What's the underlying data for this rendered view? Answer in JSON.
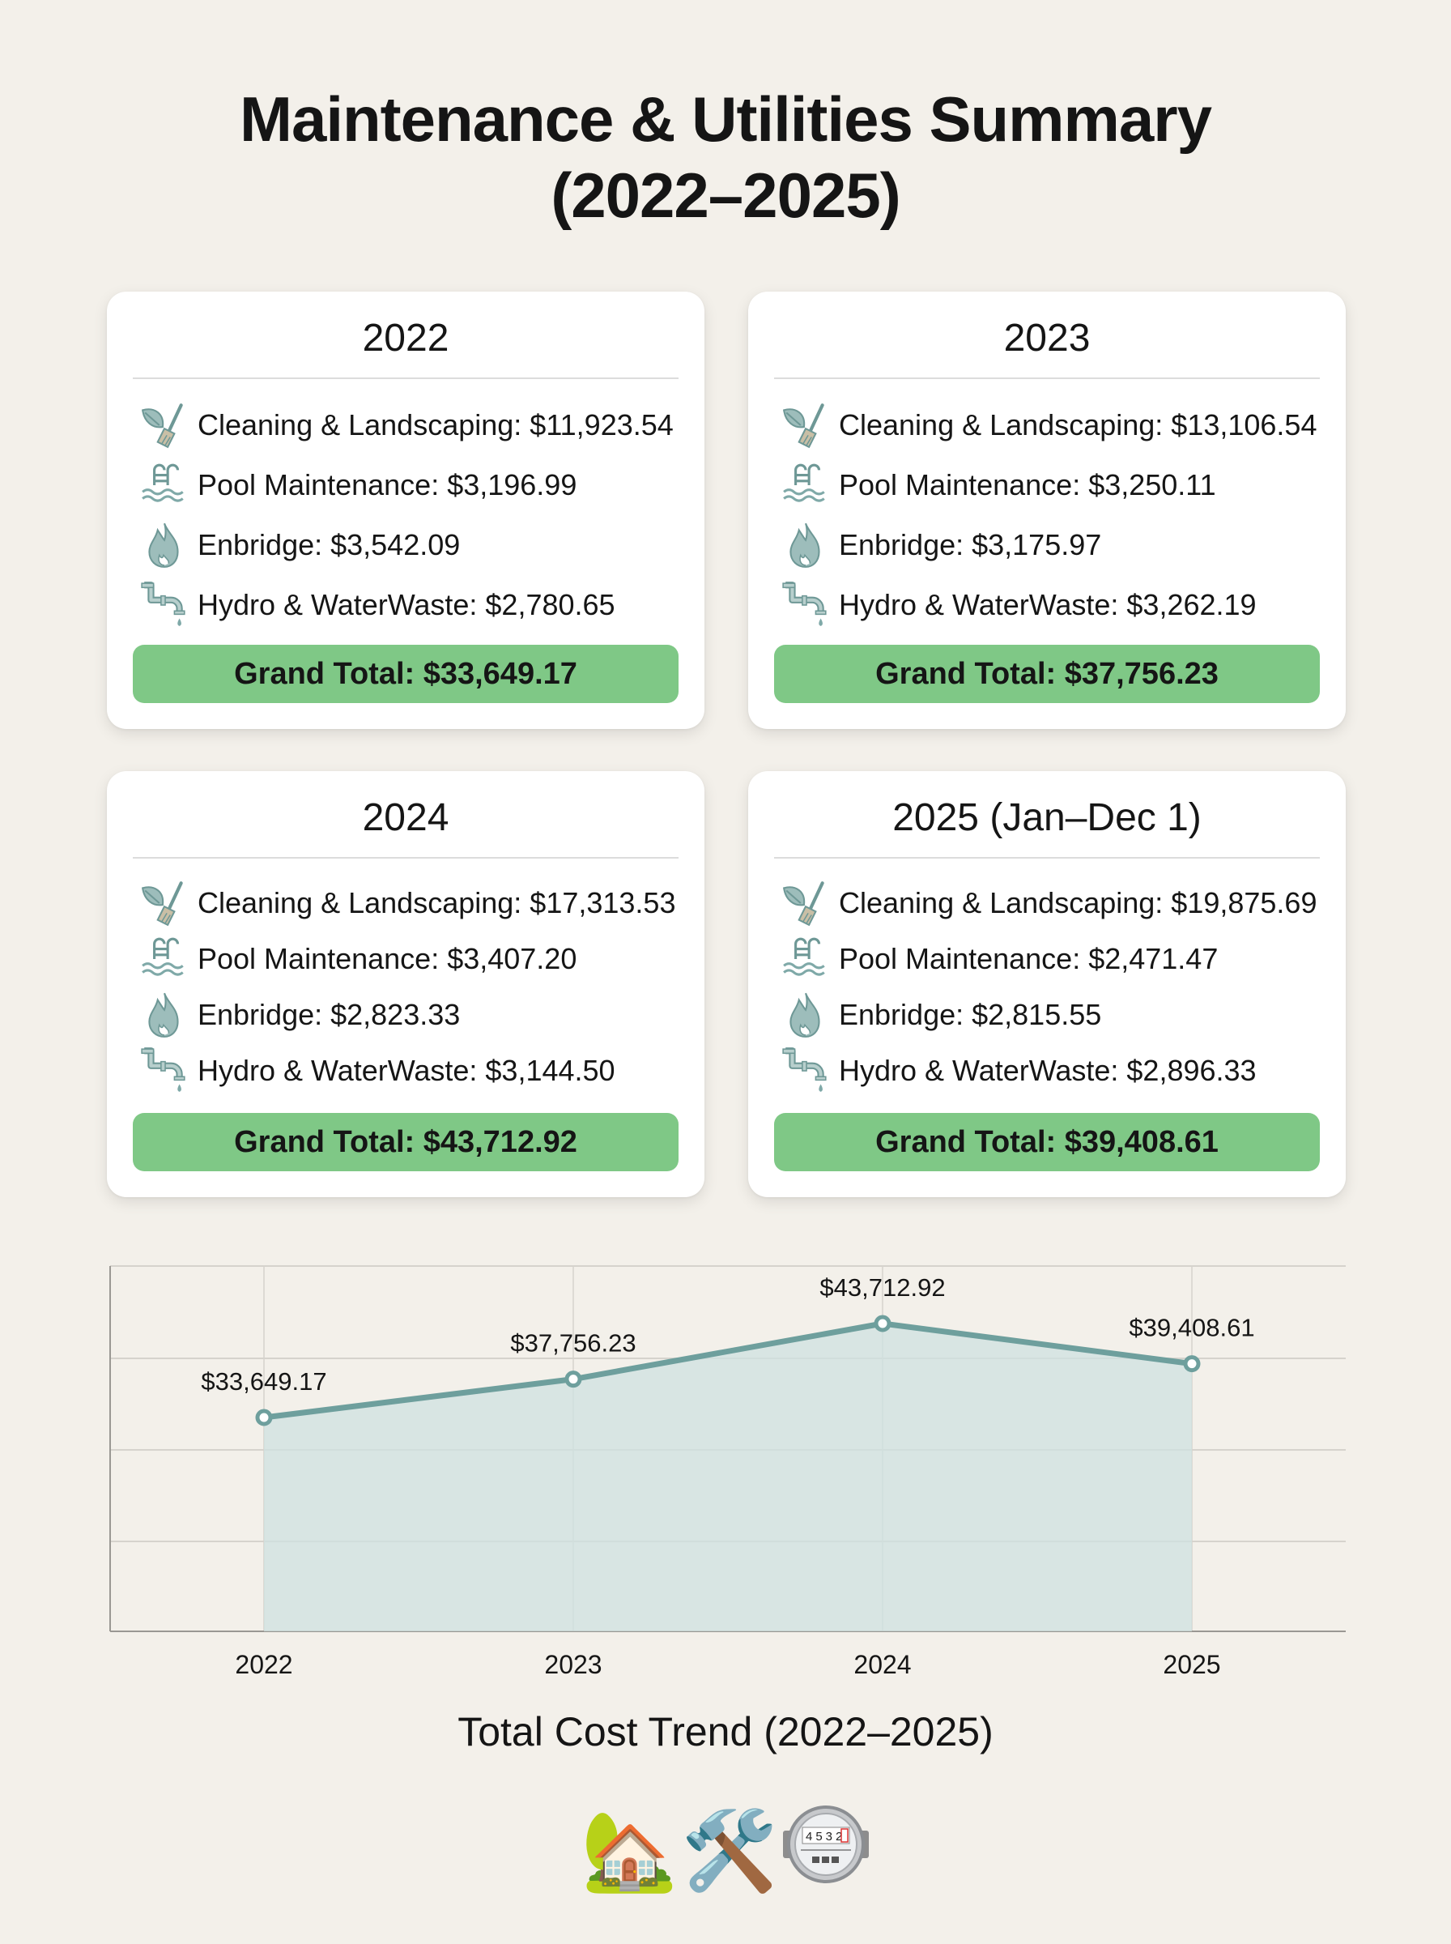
{
  "title_line1": "Maintenance & Utilities Summary",
  "title_line2": "(2022–2025)",
  "colors": {
    "background": "#f3f0ea",
    "card": "#ffffff",
    "total_bar": "#7fc886",
    "icon": "#7fa9a8",
    "line": "#6e9f9d",
    "area": "#cfe2e0",
    "grid": "#d6d3cd"
  },
  "cards": [
    {
      "year_label": "2022",
      "items": [
        {
          "icon": "leaf-broom-icon",
          "text": "Cleaning & Landscaping: $11,923.54"
        },
        {
          "icon": "pool-ladder-icon",
          "text": "Pool Maintenance: $3,196.99"
        },
        {
          "icon": "flame-icon",
          "text": "Enbridge: $3,542.09"
        },
        {
          "icon": "faucet-pipe-icon",
          "text": "Hydro & WaterWaste: $2,780.65"
        }
      ],
      "grand_total": "Grand Total: $33,649.17"
    },
    {
      "year_label": "2023",
      "items": [
        {
          "icon": "leaf-broom-icon",
          "text": "Cleaning & Landscaping: $13,106.54"
        },
        {
          "icon": "pool-ladder-icon",
          "text": "Pool Maintenance: $3,250.11"
        },
        {
          "icon": "flame-icon",
          "text": "Enbridge: $3,175.97"
        },
        {
          "icon": "faucet-pipe-icon",
          "text": "Hydro & WaterWaste: $3,262.19"
        }
      ],
      "grand_total": "Grand Total: $37,756.23"
    },
    {
      "year_label": "2024",
      "items": [
        {
          "icon": "leaf-broom-icon",
          "text": "Cleaning & Landscaping: $17,313.53"
        },
        {
          "icon": "pool-ladder-icon",
          "text": "Pool Maintenance: $3,407.20"
        },
        {
          "icon": "flame-icon",
          "text": "Enbridge: $2,823.33"
        },
        {
          "icon": "faucet-pipe-icon",
          "text": "Hydro & WaterWaste: $3,144.50"
        }
      ],
      "grand_total": "Grand Total: $43,712.92"
    },
    {
      "year_label": "2025 (Jan–Dec 1)",
      "items": [
        {
          "icon": "leaf-broom-icon",
          "text": "Cleaning & Landscaping: $19,875.69"
        },
        {
          "icon": "pool-ladder-icon",
          "text": "Pool Maintenance: $2,471.47"
        },
        {
          "icon": "flame-icon",
          "text": "Enbridge: $2,815.55"
        },
        {
          "icon": "faucet-pipe-icon",
          "text": "Hydro & WaterWaste: $2,896.33"
        }
      ],
      "grand_total": "Grand Total: $39,408.61"
    }
  ],
  "chart_data": {
    "type": "area",
    "title": "Total Cost Trend (2022–2025)",
    "xlabel": "",
    "ylabel": "",
    "categories": [
      "2022",
      "2023",
      "2024",
      "2025"
    ],
    "values": [
      33649.17,
      37756.23,
      43712.92,
      39408.61
    ],
    "data_labels": [
      "$33,649.17",
      "$37,756.23",
      "$43,712.92",
      "$39,408.61"
    ],
    "ylim": [
      0,
      50000
    ],
    "y_tick_labels_visible": false,
    "grid": true,
    "legend": "none",
    "series": [
      {
        "name": "Grand Total",
        "values": [
          33649.17,
          37756.23,
          43712.92,
          39408.61
        ]
      }
    ]
  },
  "footer": {
    "emojis": "🏡🛠️",
    "meter_reading": "4532"
  }
}
